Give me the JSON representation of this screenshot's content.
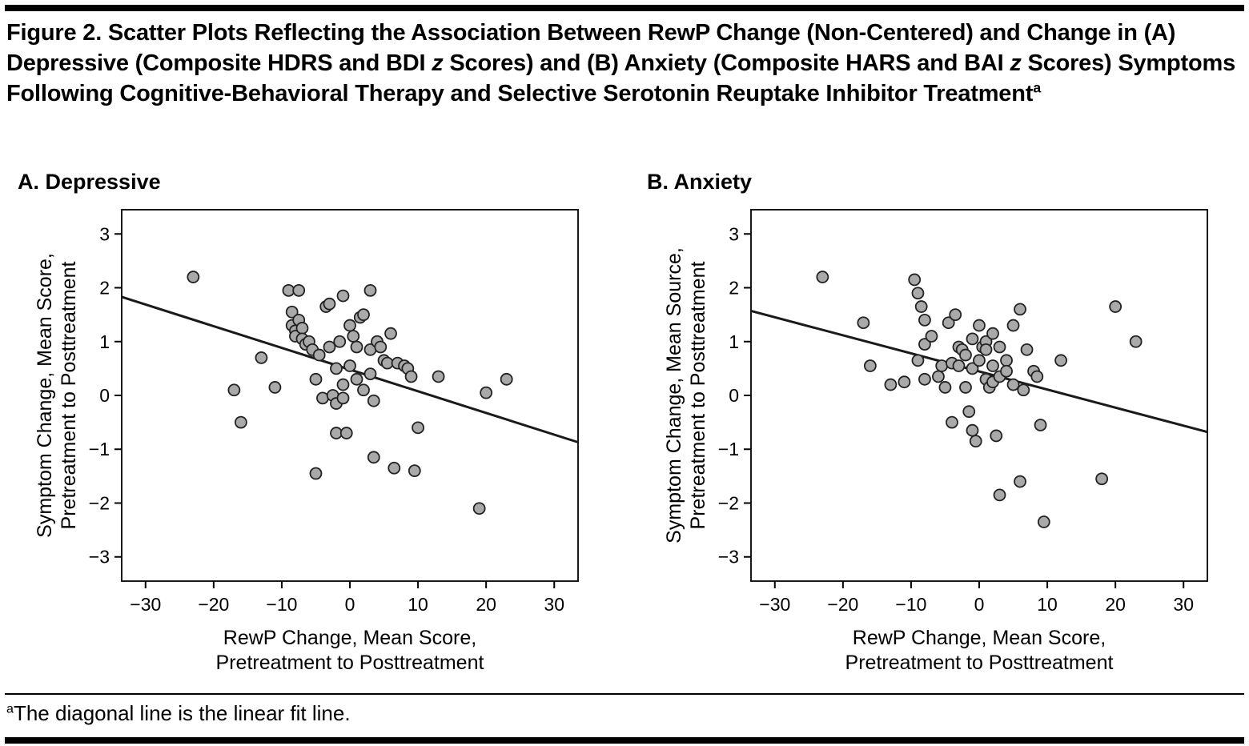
{
  "title": {
    "segments": [
      {
        "text": "Figure 2. Scatter Plots Reflecting the Association Between RewP Change (Non-Centered) and Change in (A) Depressive (Composite HDRS and BDI "
      },
      {
        "text": "z",
        "italic": true
      },
      {
        "text": " Scores) and (B) Anxiety (Composite HARS and BAI "
      },
      {
        "text": "z",
        "italic": true
      },
      {
        "text": " Scores) Symptoms Following Cognitive-Behavioral Therapy and Selective Serotonin Reuptake Inhibitor Treatment"
      },
      {
        "text": "a",
        "sup": true
      }
    ]
  },
  "footnote": {
    "segments": [
      {
        "text": "a",
        "sup": true
      },
      {
        "text": "The diagonal line is the linear fit line."
      }
    ]
  },
  "style": {
    "background": "#ffffff",
    "axis_color": "#000000",
    "line_color": "#1a1a1a",
    "point_fill": "#a9a9a9",
    "point_stroke": "#222222"
  },
  "chart_data": [
    {
      "id": "depressive-scatter",
      "type": "scatter",
      "panel_label": "A. Depressive",
      "xlabel_lines": [
        "RewP Change, Mean Score,",
        "Pretreatment to Posttreatment"
      ],
      "ylabel_lines": [
        "Symptom Change, Mean Score,",
        "Pretreatment to Posttreatment"
      ],
      "xlim": [
        -33.5,
        33.5
      ],
      "ylim": [
        -3.45,
        3.45
      ],
      "grid": false,
      "legend": false,
      "xticks": [
        {
          "value": -30,
          "label": "−30"
        },
        {
          "value": -20,
          "label": "−20"
        },
        {
          "value": -10,
          "label": "−10"
        },
        {
          "value": 0,
          "label": "0"
        },
        {
          "value": 10,
          "label": "10"
        },
        {
          "value": 20,
          "label": "20"
        },
        {
          "value": 30,
          "label": "30"
        }
      ],
      "yticks": [
        {
          "value": 3,
          "label": "3"
        },
        {
          "value": 2,
          "label": "2"
        },
        {
          "value": 1,
          "label": "1"
        },
        {
          "value": 0,
          "label": "0"
        },
        {
          "value": -1,
          "label": "−1"
        },
        {
          "value": -2,
          "label": "−2"
        },
        {
          "value": -3,
          "label": "−3"
        }
      ],
      "fit_line": {
        "x1": -33.5,
        "y1": 1.83,
        "x2": 33.5,
        "y2": -0.87
      },
      "points": [
        [
          -23,
          2.2
        ],
        [
          -17,
          0.1
        ],
        [
          -16,
          -0.5
        ],
        [
          -13,
          0.7
        ],
        [
          -11,
          0.15
        ],
        [
          -9,
          1.95
        ],
        [
          -8.5,
          1.55
        ],
        [
          -8.5,
          1.3
        ],
        [
          -8,
          1.2
        ],
        [
          -8,
          1.1
        ],
        [
          -7.5,
          1.95
        ],
        [
          -7.5,
          1.4
        ],
        [
          -7,
          1.25
        ],
        [
          -7,
          1.05
        ],
        [
          -6.5,
          0.95
        ],
        [
          -6,
          1.0
        ],
        [
          -5.5,
          0.85
        ],
        [
          -5,
          0.3
        ],
        [
          -5,
          -1.45
        ],
        [
          -4.5,
          0.75
        ],
        [
          -4,
          -0.05
        ],
        [
          -3.5,
          1.65
        ],
        [
          -3,
          1.7
        ],
        [
          -3,
          0.9
        ],
        [
          -2.5,
          0.0
        ],
        [
          -2,
          0.5
        ],
        [
          -2,
          -0.15
        ],
        [
          -2,
          -0.7
        ],
        [
          -1.5,
          1.0
        ],
        [
          -1,
          1.85
        ],
        [
          -1,
          0.2
        ],
        [
          -1,
          -0.05
        ],
        [
          -0.5,
          -0.7
        ],
        [
          0,
          1.3
        ],
        [
          0,
          0.55
        ],
        [
          0.5,
          1.1
        ],
        [
          1,
          0.9
        ],
        [
          1,
          0.3
        ],
        [
          1.5,
          1.45
        ],
        [
          2,
          1.5
        ],
        [
          2,
          0.1
        ],
        [
          3,
          1.95
        ],
        [
          3,
          0.85
        ],
        [
          3,
          0.4
        ],
        [
          3.5,
          -0.1
        ],
        [
          3.5,
          -1.15
        ],
        [
          4,
          1.0
        ],
        [
          4.5,
          0.9
        ],
        [
          5,
          0.65
        ],
        [
          5.5,
          0.6
        ],
        [
          6,
          1.15
        ],
        [
          6.5,
          -1.35
        ],
        [
          7,
          0.6
        ],
        [
          8,
          0.55
        ],
        [
          8.5,
          0.5
        ],
        [
          9,
          0.35
        ],
        [
          9.5,
          -1.4
        ],
        [
          10,
          -0.6
        ],
        [
          13,
          0.35
        ],
        [
          19,
          -2.1
        ],
        [
          20,
          0.05
        ],
        [
          23,
          0.3
        ]
      ]
    },
    {
      "id": "anxiety-scatter",
      "type": "scatter",
      "panel_label": "B. Anxiety",
      "xlabel_lines": [
        "RewP Change, Mean Score,",
        "Pretreatment to Posttreatment"
      ],
      "ylabel_lines": [
        "Symptom Change, Mean Source,",
        "Pretreatment to Posttreatment"
      ],
      "xlim": [
        -33.5,
        33.5
      ],
      "ylim": [
        -3.45,
        3.45
      ],
      "grid": false,
      "legend": false,
      "xticks": [
        {
          "value": -30,
          "label": "−30"
        },
        {
          "value": -20,
          "label": "−20"
        },
        {
          "value": -10,
          "label": "−10"
        },
        {
          "value": 0,
          "label": "0"
        },
        {
          "value": 10,
          "label": "10"
        },
        {
          "value": 20,
          "label": "20"
        },
        {
          "value": 30,
          "label": "30"
        }
      ],
      "yticks": [
        {
          "value": 3,
          "label": "3"
        },
        {
          "value": 2,
          "label": "2"
        },
        {
          "value": 1,
          "label": "1"
        },
        {
          "value": 0,
          "label": "0"
        },
        {
          "value": -1,
          "label": "−1"
        },
        {
          "value": -2,
          "label": "−2"
        },
        {
          "value": -3,
          "label": "−3"
        }
      ],
      "fit_line": {
        "x1": -33.5,
        "y1": 1.57,
        "x2": 33.5,
        "y2": -0.68
      },
      "points": [
        [
          -23,
          2.2
        ],
        [
          -17,
          1.35
        ],
        [
          -16,
          0.55
        ],
        [
          -13,
          0.2
        ],
        [
          -11,
          0.25
        ],
        [
          -9.5,
          2.15
        ],
        [
          -9,
          1.9
        ],
        [
          -9,
          0.65
        ],
        [
          -8.5,
          1.65
        ],
        [
          -8,
          1.4
        ],
        [
          -8,
          0.95
        ],
        [
          -8,
          0.3
        ],
        [
          -7,
          1.1
        ],
        [
          -6,
          0.35
        ],
        [
          -5.5,
          0.55
        ],
        [
          -5,
          0.15
        ],
        [
          -4.5,
          1.35
        ],
        [
          -4,
          0.6
        ],
        [
          -4,
          -0.5
        ],
        [
          -3.5,
          1.5
        ],
        [
          -3,
          0.9
        ],
        [
          -3,
          0.55
        ],
        [
          -2.5,
          0.85
        ],
        [
          -2,
          0.75
        ],
        [
          -2,
          0.15
        ],
        [
          -1.5,
          -0.3
        ],
        [
          -1,
          1.05
        ],
        [
          -1,
          0.5
        ],
        [
          -1,
          -0.65
        ],
        [
          -0.5,
          -0.85
        ],
        [
          0,
          1.3
        ],
        [
          0,
          0.65
        ],
        [
          0.5,
          0.9
        ],
        [
          1,
          1.0
        ],
        [
          1,
          0.85
        ],
        [
          1,
          0.3
        ],
        [
          1.5,
          0.15
        ],
        [
          2,
          1.15
        ],
        [
          2,
          0.55
        ],
        [
          2,
          0.25
        ],
        [
          2.5,
          -0.75
        ],
        [
          3,
          0.9
        ],
        [
          3,
          0.35
        ],
        [
          3,
          -1.85
        ],
        [
          4,
          0.65
        ],
        [
          4,
          0.45
        ],
        [
          5,
          1.3
        ],
        [
          5,
          0.2
        ],
        [
          6,
          1.6
        ],
        [
          6,
          -1.6
        ],
        [
          6.5,
          0.1
        ],
        [
          7,
          0.85
        ],
        [
          8,
          0.45
        ],
        [
          8.5,
          0.35
        ],
        [
          9,
          -0.55
        ],
        [
          9.5,
          -2.35
        ],
        [
          12,
          0.65
        ],
        [
          18,
          -1.55
        ],
        [
          20,
          1.65
        ],
        [
          23,
          1.0
        ]
      ]
    }
  ]
}
